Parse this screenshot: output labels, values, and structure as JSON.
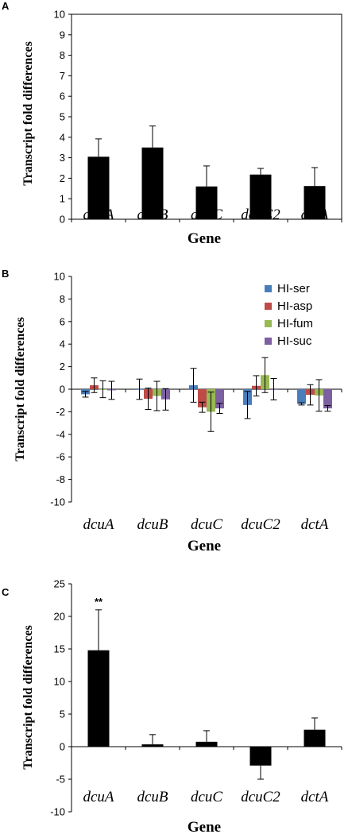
{
  "chart_data": [
    {
      "panel": "A",
      "type": "bar",
      "categories": [
        "dcuA",
        "dcuB",
        "dcuC",
        "dcuC2",
        "dctA"
      ],
      "values": [
        3.05,
        3.5,
        1.6,
        2.18,
        1.62
      ],
      "errors": [
        0.87,
        1.05,
        1.0,
        0.3,
        0.9
      ],
      "title": "",
      "xlabel": "Gene",
      "ylabel": "Transcript fold differences",
      "ylim": [
        0,
        10
      ],
      "yticks": [
        "0",
        "1",
        "2",
        "3",
        "4",
        "5",
        "6",
        "7",
        "8",
        "9",
        "10"
      ],
      "grid": false,
      "bar_color": "#000000"
    },
    {
      "panel": "B",
      "type": "bar",
      "categories": [
        "dcuA",
        "dcuB",
        "dcuC",
        "dcuC2",
        "dctA"
      ],
      "series": [
        {
          "name": "HI-ser",
          "color": "#4a7ebb",
          "values": [
            -0.45,
            0.0,
            0.35,
            -1.4,
            -1.3
          ],
          "errors": [
            0.25,
            0.9,
            1.5,
            1.2,
            0.1
          ]
        },
        {
          "name": "HI-asp",
          "color": "#be4b48",
          "values": [
            0.35,
            -0.85,
            -1.6,
            0.3,
            -0.5
          ],
          "errors": [
            0.65,
            0.95,
            0.45,
            0.9,
            0.9
          ]
        },
        {
          "name": "HI-fum",
          "color": "#98b954",
          "values": [
            0.0,
            -0.6,
            -2.0,
            1.25,
            -0.55
          ],
          "errors": [
            0.75,
            1.3,
            1.75,
            1.55,
            1.4
          ]
        },
        {
          "name": "HI-suc",
          "color": "#7d60a0",
          "values": [
            -0.1,
            -0.9,
            -1.7,
            0.0,
            -1.7
          ],
          "errors": [
            0.8,
            0.95,
            0.45,
            0.95,
            0.25
          ]
        }
      ],
      "title": "",
      "xlabel": "Gene",
      "ylabel": "Transcript fold differences",
      "ylim": [
        -10,
        10
      ],
      "yticks": [
        "-10",
        "-8",
        "-6",
        "-4",
        "-2",
        "0",
        "2",
        "4",
        "6",
        "8",
        "10"
      ],
      "grid": false,
      "legend": "top-right"
    },
    {
      "panel": "C",
      "type": "bar",
      "categories": [
        "dcuA",
        "dcuB",
        "dcuC",
        "dcuC2",
        "dctA"
      ],
      "values": [
        14.8,
        0.35,
        0.75,
        -2.9,
        2.6
      ],
      "errors": [
        6.2,
        1.5,
        1.7,
        2.1,
        1.8
      ],
      "annotations": [
        {
          "category": "dcuA",
          "text": "**"
        }
      ],
      "title": "",
      "xlabel": "Gene",
      "ylabel": "Transcript fold differences",
      "ylim": [
        -10,
        25
      ],
      "yticks": [
        "-10",
        "-5",
        "0",
        "5",
        "10",
        "15",
        "20",
        "25"
      ],
      "grid": false,
      "bar_color": "#000000"
    }
  ]
}
